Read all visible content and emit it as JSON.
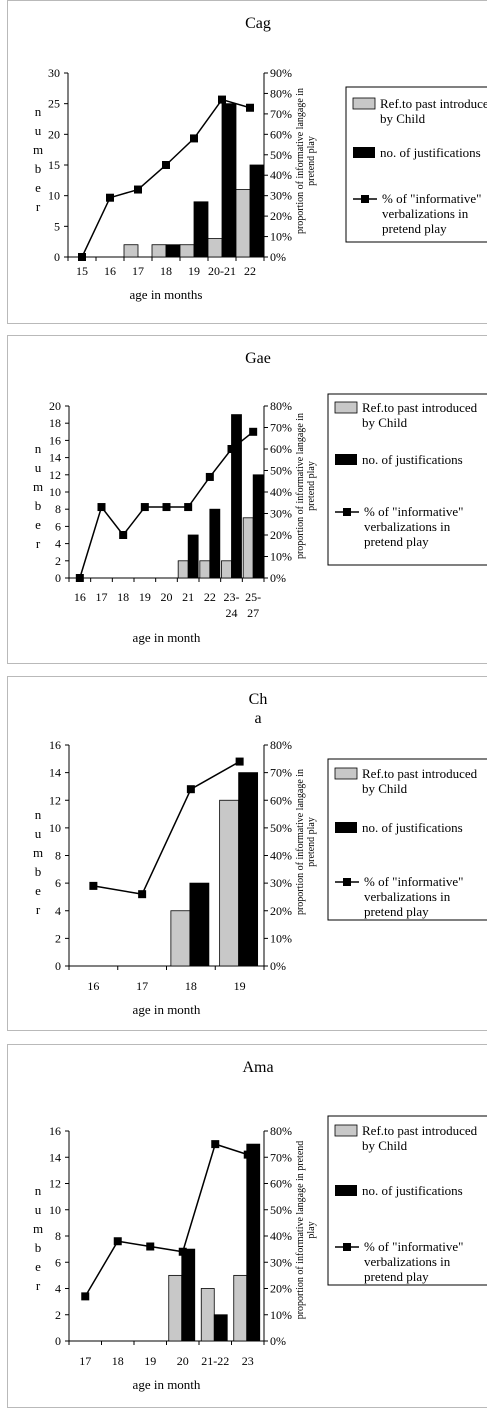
{
  "colors": {
    "ref_bar": "#c8c8c8",
    "just_bar": "#000000",
    "line": "#000000",
    "border": "#b9b9b9"
  },
  "legend_labels": {
    "ref": [
      "Ref.to past introduced",
      "by Child"
    ],
    "just": [
      "no. of justifications"
    ],
    "pct": [
      "% of \"informative\"",
      "verbalizations in",
      "pretend play"
    ]
  },
  "chart_data": [
    {
      "type": "bar",
      "title": [
        "Cag"
      ],
      "xlabel": "age in months",
      "ylabel": "number",
      "y2label": [
        "proportion of informative langage in",
        "pretend play"
      ],
      "categories": [
        "15",
        "16",
        "17",
        "18",
        "19",
        "20-21",
        "22"
      ],
      "ylim": [
        0,
        30
      ],
      "yticks": [
        0,
        5,
        10,
        15,
        20,
        25,
        30
      ],
      "y2lim": [
        0,
        90
      ],
      "y2ticks": [
        "0%",
        "10%",
        "20%",
        "30%",
        "40%",
        "50%",
        "60%",
        "70%",
        "80%",
        "90%"
      ],
      "series": [
        {
          "name": "Ref.to past introduced by Child",
          "kind": "bar",
          "values": [
            0,
            0,
            2,
            2,
            2,
            3,
            11
          ]
        },
        {
          "name": "no. of justifications",
          "kind": "bar",
          "values": [
            0,
            0,
            0,
            2,
            9,
            25,
            15
          ]
        },
        {
          "name": "% of \"informative\" verbalizations in pretend play",
          "kind": "line",
          "values": [
            0,
            29,
            33,
            45,
            58,
            77,
            73
          ]
        }
      ],
      "legend": "right"
    },
    {
      "type": "bar",
      "title": [
        "Gae"
      ],
      "xlabel": "age in month",
      "ylabel": "number",
      "y2label": [
        "proportion of informative langage in",
        "pretend play"
      ],
      "categories": [
        "16",
        "17",
        "18",
        "19",
        "20",
        "21",
        "22",
        "23-24",
        "25-27"
      ],
      "ylim": [
        0,
        20
      ],
      "yticks": [
        0,
        2,
        4,
        6,
        8,
        10,
        12,
        14,
        16,
        18,
        20
      ],
      "y2lim": [
        0,
        80
      ],
      "y2ticks": [
        "0%",
        "10%",
        "20%",
        "30%",
        "40%",
        "50%",
        "60%",
        "70%",
        "80%"
      ],
      "series": [
        {
          "name": "Ref.to past introduced by Child",
          "kind": "bar",
          "values": [
            0,
            0,
            0,
            0,
            0,
            2,
            2,
            2,
            7
          ]
        },
        {
          "name": "no. of justifications",
          "kind": "bar",
          "values": [
            0,
            0,
            0,
            0,
            0,
            5,
            8,
            19,
            12
          ]
        },
        {
          "name": "% of \"informative\" verbalizations in pretend play",
          "kind": "line",
          "values": [
            0,
            33,
            20,
            33,
            33,
            33,
            47,
            60,
            68
          ]
        }
      ],
      "legend": "right"
    },
    {
      "type": "bar",
      "title": [
        "Ch",
        "a"
      ],
      "xlabel": "age in month",
      "ylabel": "number",
      "y2label": [
        "proportion of informative langage in",
        "pretend play"
      ],
      "categories": [
        "16",
        "17",
        "18",
        "19"
      ],
      "ylim": [
        0,
        16
      ],
      "yticks": [
        0,
        2,
        4,
        6,
        8,
        10,
        12,
        14,
        16
      ],
      "y2lim": [
        0,
        80
      ],
      "y2ticks": [
        "0%",
        "10%",
        "20%",
        "30%",
        "40%",
        "50%",
        "60%",
        "70%",
        "80%"
      ],
      "series": [
        {
          "name": "Ref.to past introduced by Child",
          "kind": "bar",
          "values": [
            0,
            0,
            4,
            12
          ]
        },
        {
          "name": "no. of justifications",
          "kind": "bar",
          "values": [
            0,
            0,
            6,
            14
          ]
        },
        {
          "name": "% of \"informative\" verbalizations in pretend play",
          "kind": "line",
          "values": [
            29,
            26,
            64,
            74
          ]
        }
      ],
      "legend": "right"
    },
    {
      "type": "bar",
      "title": [
        "Ama"
      ],
      "xlabel": "age in month",
      "ylabel": "number",
      "y2label": [
        "proportion of informative langage in pretend",
        "play"
      ],
      "categories": [
        "17",
        "18",
        "19",
        "20",
        "21-22",
        "23"
      ],
      "ylim": [
        0,
        16
      ],
      "yticks": [
        0,
        2,
        4,
        6,
        8,
        10,
        12,
        14,
        16
      ],
      "y2lim": [
        0,
        80
      ],
      "y2ticks": [
        "0%",
        "10%",
        "20%",
        "30%",
        "40%",
        "50%",
        "60%",
        "70%",
        "80%"
      ],
      "series": [
        {
          "name": "Ref.to past introduced by Child",
          "kind": "bar",
          "values": [
            0,
            0,
            0,
            5,
            4,
            5
          ]
        },
        {
          "name": "no. of justifications",
          "kind": "bar",
          "values": [
            0,
            0,
            0,
            7,
            2,
            15
          ]
        },
        {
          "name": "% of \"informative\" verbalizations in pretend play",
          "kind": "line",
          "values": [
            17,
            38,
            36,
            34,
            75,
            71
          ]
        }
      ],
      "legend": "right"
    }
  ]
}
